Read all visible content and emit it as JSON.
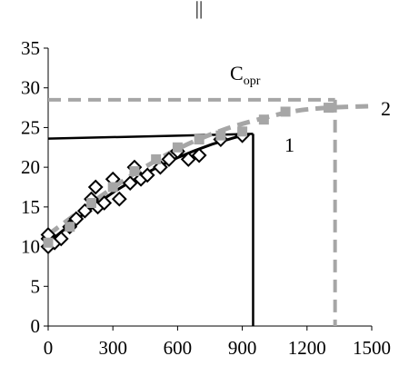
{
  "chart_data": {
    "type": "scatter",
    "title": "",
    "top_mark": "||",
    "xlabel": "",
    "ylabel": "",
    "xlim": [
      0,
      1500
    ],
    "ylim": [
      0,
      35
    ],
    "x_ticks": [
      0,
      300,
      600,
      900,
      1200,
      1500
    ],
    "y_ticks": [
      0,
      5,
      10,
      15,
      20,
      25,
      30,
      35
    ],
    "grid": false,
    "legend": "none",
    "annotations": {
      "c_main": "C",
      "c_sub": "opr",
      "label_1": "1",
      "label_2": "2"
    },
    "series": [
      {
        "marker": "diamond",
        "color": "#000000",
        "points": [
          [
            0,
            10
          ],
          [
            0,
            11
          ],
          [
            0,
            11.5
          ],
          [
            30,
            10.5
          ],
          [
            60,
            11
          ],
          [
            100,
            12.5
          ],
          [
            130,
            13.5
          ],
          [
            170,
            14.5
          ],
          [
            200,
            16
          ],
          [
            220,
            17.5
          ],
          [
            230,
            15
          ],
          [
            260,
            15.5
          ],
          [
            300,
            18.5
          ],
          [
            330,
            16
          ],
          [
            380,
            18
          ],
          [
            400,
            20
          ],
          [
            430,
            18.5
          ],
          [
            460,
            19
          ],
          [
            520,
            20
          ],
          [
            560,
            21
          ],
          [
            600,
            22
          ],
          [
            650,
            21
          ],
          [
            700,
            21.5
          ],
          [
            800,
            23.5
          ],
          [
            900,
            24
          ]
        ]
      },
      {
        "marker": "square",
        "color": "#a6a6a6",
        "points": [
          [
            0,
            10.5
          ],
          [
            100,
            12.5
          ],
          [
            200,
            15.5
          ],
          [
            300,
            17.5
          ],
          [
            400,
            19.5
          ],
          [
            500,
            21
          ],
          [
            600,
            22.5
          ],
          [
            700,
            23.5
          ],
          [
            800,
            24
          ],
          [
            900,
            24.5
          ],
          [
            1000,
            26
          ],
          [
            1100,
            27
          ],
          [
            1300,
            27.5
          ]
        ]
      }
    ],
    "fit_curves": [
      {
        "id": "1",
        "color": "#000000",
        "dashed": false,
        "points": [
          [
            0,
            10.5
          ],
          [
            150,
            13.8
          ],
          [
            300,
            16.8
          ],
          [
            450,
            19.2
          ],
          [
            600,
            21.2
          ],
          [
            750,
            22.8
          ],
          [
            900,
            24
          ]
        ]
      },
      {
        "id": "2",
        "color": "#a6a6a6",
        "dashed": true,
        "points": [
          [
            0,
            11.5
          ],
          [
            200,
            15.5
          ],
          [
            400,
            19.2
          ],
          [
            600,
            22.3
          ],
          [
            800,
            24.6
          ],
          [
            1000,
            26.2
          ],
          [
            1150,
            27.1
          ],
          [
            1300,
            27.5
          ],
          [
            1500,
            27.7
          ]
        ]
      }
    ],
    "reference_lines": [
      {
        "id": "1",
        "color": "#000000",
        "dashed": false,
        "horizontal": {
          "from_x": 0,
          "to_x": 950,
          "y": [
            23.6,
            24.2
          ]
        },
        "vertical": {
          "x": 950,
          "from_y": 24.2,
          "to_y": 0
        }
      },
      {
        "id": "2",
        "color": "#a6a6a6",
        "dashed": true,
        "horizontal": {
          "from_x": 0,
          "to_x": 1330,
          "y": [
            28.5,
            28.5
          ]
        },
        "vertical": {
          "x": 1330,
          "from_y": 28.5,
          "to_y": 0
        }
      }
    ]
  }
}
